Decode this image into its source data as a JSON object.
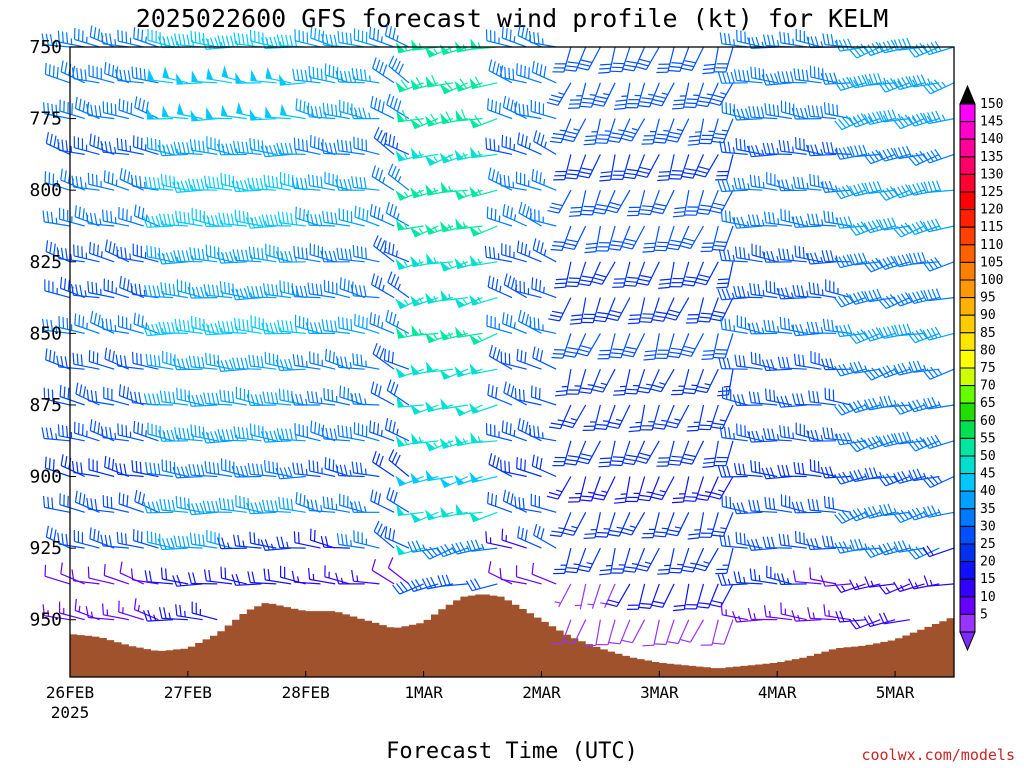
{
  "chart_data": {
    "type": "wind-barb-time-height",
    "title": "2025022600 GFS forecast wind profile (kt) for KELM",
    "xlabel": "Forecast Time (UTC)",
    "ylabel": "",
    "x_ticks": [
      {
        "label": "26FEB",
        "sub": "2025",
        "hour": 0
      },
      {
        "label": "27FEB",
        "sub": "",
        "hour": 24
      },
      {
        "label": "28FEB",
        "sub": "",
        "hour": 48
      },
      {
        "label": "1MAR",
        "sub": "",
        "hour": 72
      },
      {
        "label": "2MAR",
        "sub": "",
        "hour": 96
      },
      {
        "label": "3MAR",
        "sub": "",
        "hour": 120
      },
      {
        "label": "4MAR",
        "sub": "",
        "hour": 144
      },
      {
        "label": "5MAR",
        "sub": "",
        "hour": 168
      }
    ],
    "x_range_hours": [
      0,
      180
    ],
    "barb_interval_hours": 3,
    "y_ticks": [
      "750",
      "775",
      "800",
      "825",
      "850",
      "875",
      "900",
      "925",
      "950"
    ],
    "y_levels_hpa": [
      750,
      762.5,
      775,
      787.5,
      800,
      812.5,
      825,
      837.5,
      850,
      862.5,
      875,
      887.5,
      900,
      912.5,
      925,
      937.5,
      950
    ],
    "y_range_hpa": [
      750,
      970
    ],
    "colorbar": {
      "labels": [
        "150",
        "145",
        "140",
        "135",
        "130",
        "125",
        "120",
        "115",
        "110",
        "105",
        "100",
        "95",
        "90",
        "85",
        "80",
        "75",
        "70",
        "65",
        "60",
        "55",
        "50",
        "45",
        "40",
        "35",
        "30",
        "25",
        "20",
        "15",
        "10",
        "5"
      ],
      "colors": [
        "#ff00ff",
        "#ff00cc",
        "#ff0099",
        "#ff0066",
        "#ff0033",
        "#ff0000",
        "#ff2000",
        "#ff4000",
        "#ff6000",
        "#ff7f00",
        "#ff9900",
        "#ffb300",
        "#ffcc00",
        "#ffe600",
        "#ffff00",
        "#ccff00",
        "#66ff00",
        "#22dd00",
        "#00e050",
        "#00e8a0",
        "#00e0d0",
        "#00c8ff",
        "#00a0ff",
        "#0078ff",
        "#0050ff",
        "#0030f0",
        "#1010ff",
        "#3300ff",
        "#6600ff",
        "#9933ff"
      ],
      "top_color": "#000000",
      "bottom_color": "#7a2bff"
    },
    "terrain_surface_hpa": [
      {
        "hour": 0,
        "p": 955
      },
      {
        "hour": 6,
        "p": 956
      },
      {
        "hour": 12,
        "p": 959
      },
      {
        "hour": 18,
        "p": 961
      },
      {
        "hour": 24,
        "p": 960
      },
      {
        "hour": 30,
        "p": 955
      },
      {
        "hour": 36,
        "p": 947
      },
      {
        "hour": 40,
        "p": 944
      },
      {
        "hour": 48,
        "p": 947
      },
      {
        "hour": 54,
        "p": 947
      },
      {
        "hour": 60,
        "p": 950
      },
      {
        "hour": 66,
        "p": 953
      },
      {
        "hour": 72,
        "p": 951
      },
      {
        "hour": 76,
        "p": 946
      },
      {
        "hour": 80,
        "p": 942
      },
      {
        "hour": 84,
        "p": 941
      },
      {
        "hour": 88,
        "p": 942
      },
      {
        "hour": 92,
        "p": 946
      },
      {
        "hour": 96,
        "p": 950
      },
      {
        "hour": 102,
        "p": 956
      },
      {
        "hour": 108,
        "p": 960
      },
      {
        "hour": 114,
        "p": 963
      },
      {
        "hour": 120,
        "p": 965
      },
      {
        "hour": 126,
        "p": 966
      },
      {
        "hour": 132,
        "p": 967
      },
      {
        "hour": 138,
        "p": 966
      },
      {
        "hour": 144,
        "p": 965
      },
      {
        "hour": 150,
        "p": 963
      },
      {
        "hour": 156,
        "p": 960
      },
      {
        "hour": 162,
        "p": 959
      },
      {
        "hour": 168,
        "p": 957
      },
      {
        "hour": 174,
        "p": 953
      },
      {
        "hour": 180,
        "p": 949
      }
    ],
    "terrain_color": "#a0522d",
    "wind_regimes": [
      {
        "from_hour": 0,
        "dir_deg": 285,
        "speed_kt": 30
      },
      {
        "from_hour": 20,
        "dir_deg": 275,
        "speed_kt": 40
      },
      {
        "from_hour": 50,
        "dir_deg": 280,
        "speed_kt": 35
      },
      {
        "from_hour": 64,
        "dir_deg": 300,
        "speed_kt": 30
      },
      {
        "from_hour": 72,
        "dir_deg": 255,
        "speed_kt": 50
      },
      {
        "from_hour": 88,
        "dir_deg": 290,
        "speed_kt": 30
      },
      {
        "from_hour": 100,
        "dir_deg": 200,
        "speed_kt": 25
      },
      {
        "from_hour": 138,
        "dir_deg": 275,
        "speed_kt": 30
      },
      {
        "from_hour": 162,
        "dir_deg": 255,
        "speed_kt": 35
      }
    ],
    "credit": "coolwx.com/models"
  }
}
